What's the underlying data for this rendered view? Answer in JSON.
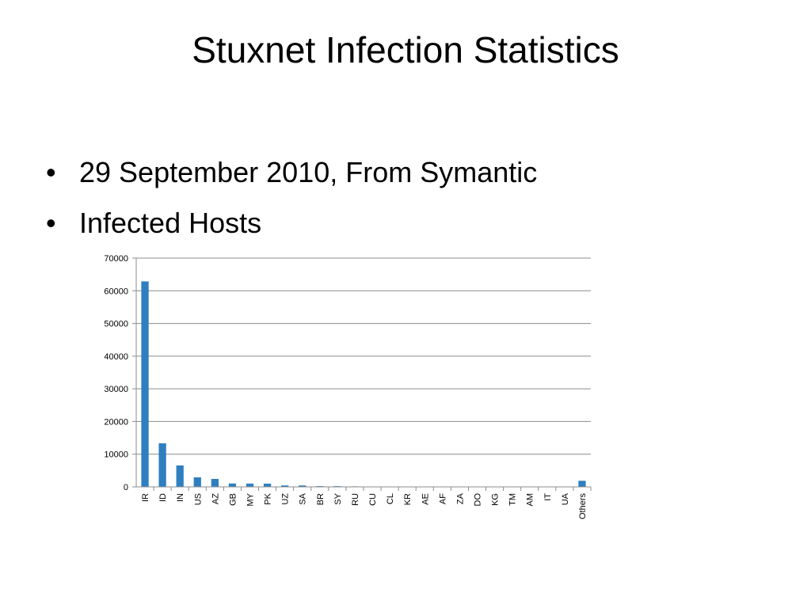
{
  "slide": {
    "title": "Stuxnet Infection Statistics",
    "bullets": [
      "29 September 2010, From Symantic",
      "Infected Hosts"
    ],
    "bullet_glyph": "•"
  },
  "chart_data": {
    "type": "bar",
    "title": "",
    "xlabel": "",
    "ylabel": "",
    "categories": [
      "IR",
      "ID",
      "IN",
      "US",
      "AZ",
      "GB",
      "MY",
      "PK",
      "UZ",
      "SA",
      "BR",
      "SY",
      "RU",
      "CU",
      "CL",
      "KR",
      "AE",
      "AF",
      "ZA",
      "DO",
      "KG",
      "TM",
      "AM",
      "IT",
      "UA",
      "Others"
    ],
    "values": [
      62867,
      13336,
      6552,
      2913,
      2439,
      1038,
      1013,
      993,
      445,
      430,
      236,
      228,
      160,
      121,
      118,
      109,
      108,
      100,
      92,
      88,
      85,
      84,
      81,
      78,
      74,
      1866
    ],
    "ylim": [
      0,
      70000
    ],
    "yticks": [
      0,
      10000,
      20000,
      30000,
      40000,
      50000,
      60000,
      70000
    ],
    "grid": true,
    "legend": "none",
    "bar_color": "#2e7fc0",
    "grid_color": "#8c8c8c"
  }
}
